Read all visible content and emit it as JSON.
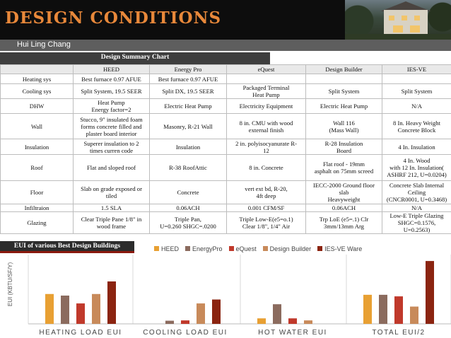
{
  "header": {
    "title": "DESIGN CONDITIONS",
    "author": "Hui Ling Chang"
  },
  "summary": {
    "title": "Design Summary Chart",
    "columns": [
      "",
      "HEED",
      "Energy Pro",
      "eQuest",
      "Design Builder",
      "IES-VE"
    ],
    "rows": [
      [
        "Heating sys",
        "Best furnace 0.97 AFUE",
        "Best furnace 0.97 AFUE",
        "",
        "",
        ""
      ],
      [
        "Cooling sys",
        "Split System, 19.5 SEER",
        "Split DX, 19.5 SEER",
        "Packaged Terminal\nHeat Pump",
        "Split System",
        "Split System"
      ],
      [
        "DHW",
        "Heat Pump\nEnergy factor=2",
        "Electric Heat Pump",
        "Electricity Equipment",
        "Electric Heat Pump",
        "N/A"
      ],
      [
        "Wall",
        "Stucco, 9\" insulated foam\nforms concrete filled and\nplaster board interior",
        "Masonry, R-21 Wall",
        "8 in. CMU with wood\nexternal finish",
        "Wall 116\n(Mass Wall)",
        "8 In. Heavy Weight\nConcrete Block"
      ],
      [
        "Insulation",
        "Superer insulation to 2\ntimes curren code",
        "Insulation",
        "2 in. polyisocyanurate R-\n12",
        "R-28 Insulation\nBoard",
        "4 In. Insulation"
      ],
      [
        "Roof",
        "Flat and sloped roof",
        "R-38 RoofAttic",
        "8 in. Concrete",
        "Flat roof - 19mm\nasphalt on 75mm screed",
        "4 In. Wood\nwith 12 In. Insulation(\nASHRF 212, U=0.0204)"
      ],
      [
        "Floor",
        "Slab on grade exposed or\ntiled",
        "Concrete",
        "vert ext bd, R-20,\n4ft deep",
        "IECC-2000 Ground floor\nslab\nHeavyweight",
        "Concrete Slab Internal\nCeiling\n(CNCR0001, U=0.3468)"
      ],
      [
        "Infiltraion",
        "1.5 SLA",
        "0.06ACH",
        "0.001 CFM/SF",
        "0.06ACH",
        "N/A"
      ],
      [
        "Glazing",
        "Clear Triple Pane 1/8\" in\nwood frame",
        "Triple Pan,\nU=0.260 SHGC=.0200",
        "Triple Low-E(e5=o.1)\nClear 1/8\", 1/4\" Air",
        "Trp LoE (e5=.1) Clr\n3mm/13mm Arg",
        "Low-E Triple Glazing\nSHGC=0.1576, U=0.2563)"
      ]
    ]
  },
  "chart_data": {
    "type": "bar",
    "title": "EUI of various Best Design Buildings",
    "ylabel": "EUI (KBTU/SF/Y)",
    "categories": [
      "HEATING LOAD EUI",
      "COOLING LOAD EUI",
      "HOT WATER EUI",
      "TOTAL EUI/2"
    ],
    "series": [
      {
        "name": "HEED",
        "color": "#e8a033",
        "values": [
          19,
          0,
          3.5,
          18.5
        ]
      },
      {
        "name": "EnergyPro",
        "color": "#8b6b5e",
        "values": [
          18,
          2,
          12.5,
          18.5
        ]
      },
      {
        "name": "eQuest",
        "color": "#c0392b",
        "values": [
          13,
          2.2,
          3.5,
          17.5
        ]
      },
      {
        "name": "Design Builder",
        "color": "#c88a5a",
        "values": [
          19,
          13,
          2.2,
          11
        ]
      },
      {
        "name": "IES-VE Ware",
        "color": "#8b2410",
        "values": [
          27,
          15.5,
          0,
          40
        ]
      }
    ],
    "ylim": [
      0,
      45
    ],
    "legend_position": "top",
    "grid": false
  }
}
